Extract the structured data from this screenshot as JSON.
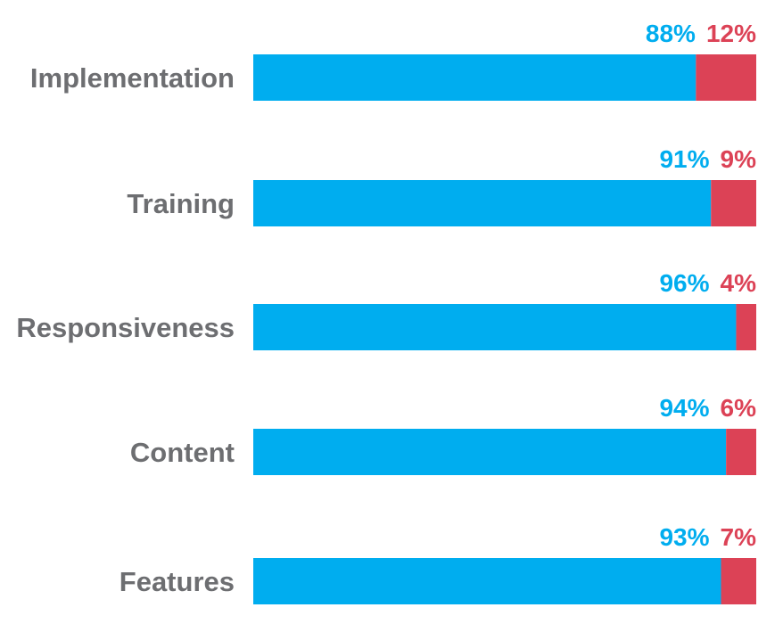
{
  "chart_data": {
    "type": "bar",
    "orientation": "horizontal",
    "stacked": true,
    "categories": [
      "Implementation",
      "Training",
      "Responsiveness",
      "Content",
      "Features"
    ],
    "series": [
      {
        "values": [
          88,
          91,
          96,
          94,
          93
        ],
        "color": "#00adef"
      },
      {
        "values": [
          12,
          9,
          4,
          6,
          7
        ],
        "color": "#dc4256"
      }
    ],
    "value_labels": [
      [
        "88%",
        "91%",
        "96%",
        "94%",
        "93%"
      ],
      [
        "12%",
        "9%",
        "4%",
        "6%",
        "7%"
      ]
    ],
    "xlim": [
      0,
      100
    ],
    "grid": false,
    "legend": "none"
  },
  "colors": {
    "category_label": "#6d6e71"
  }
}
